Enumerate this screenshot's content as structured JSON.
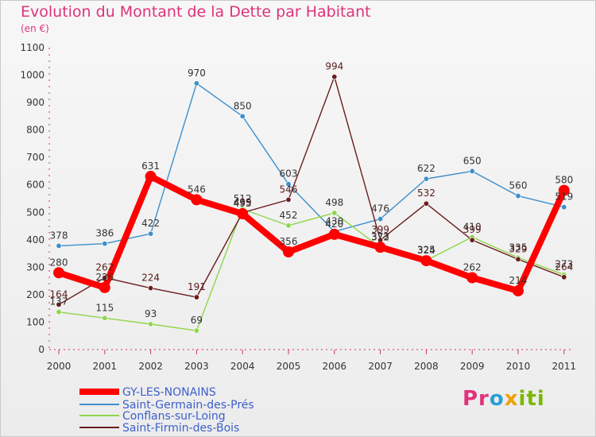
{
  "title": "Evolution du Montant de la Dette par Habitant",
  "subtitle": "(en €)",
  "logo": "Proxiti",
  "chart_data": {
    "type": "line",
    "title": "Evolution du Montant de la Dette par Habitant",
    "subtitle": "(en €)",
    "xlabel": "",
    "ylabel": "",
    "x": [
      "2000",
      "2001",
      "2002",
      "2003",
      "2004",
      "2005",
      "2006",
      "2007",
      "2008",
      "2009",
      "2010",
      "2011"
    ],
    "ylim": [
      0,
      1100
    ],
    "yticks": [
      0,
      100,
      200,
      300,
      400,
      500,
      600,
      700,
      800,
      900,
      1000,
      1100
    ],
    "grid": false,
    "legend_position": "bottom-left",
    "series": [
      {
        "name": "GY-LES-NONAINS",
        "color": "#ff0000",
        "values": [
          280,
          226,
          631,
          546,
          495,
          356,
          420,
          373,
          324,
          262,
          214,
          580
        ],
        "labels": [
          "280",
          "226",
          "631",
          "546",
          "495",
          "356",
          "420",
          "373",
          "324",
          "262",
          "214",
          "580"
        ]
      },
      {
        "name": "Saint-Germain-des-Prés",
        "color": "#3d8fcc",
        "values": [
          378,
          386,
          422,
          970,
          850,
          603,
          430,
          476,
          622,
          650,
          560,
          519
        ],
        "labels": [
          "378",
          "386",
          "422",
          "970",
          "850",
          "603",
          "430",
          "476",
          "622",
          "650",
          "560",
          "519"
        ]
      },
      {
        "name": "Conflans-sur-Loing",
        "color": "#8fd64a",
        "values": [
          137,
          115,
          93,
          69,
          512,
          452,
          498,
          372,
          325,
          410,
          335,
          273
        ],
        "labels": [
          "137",
          "115",
          "93",
          "69",
          "512",
          "452",
          "498",
          "372",
          "325",
          "410",
          "335",
          "273"
        ]
      },
      {
        "name": "Saint-Firmin-des-Bois",
        "color": "#6b1d1d",
        "values": [
          164,
          262,
          224,
          191,
          499,
          546,
          994,
          399,
          532,
          399,
          329,
          264
        ],
        "labels": [
          "164",
          "262",
          "224",
          "191",
          "499",
          "546",
          "994",
          "399",
          "532",
          "399",
          "329",
          "264"
        ]
      }
    ]
  }
}
